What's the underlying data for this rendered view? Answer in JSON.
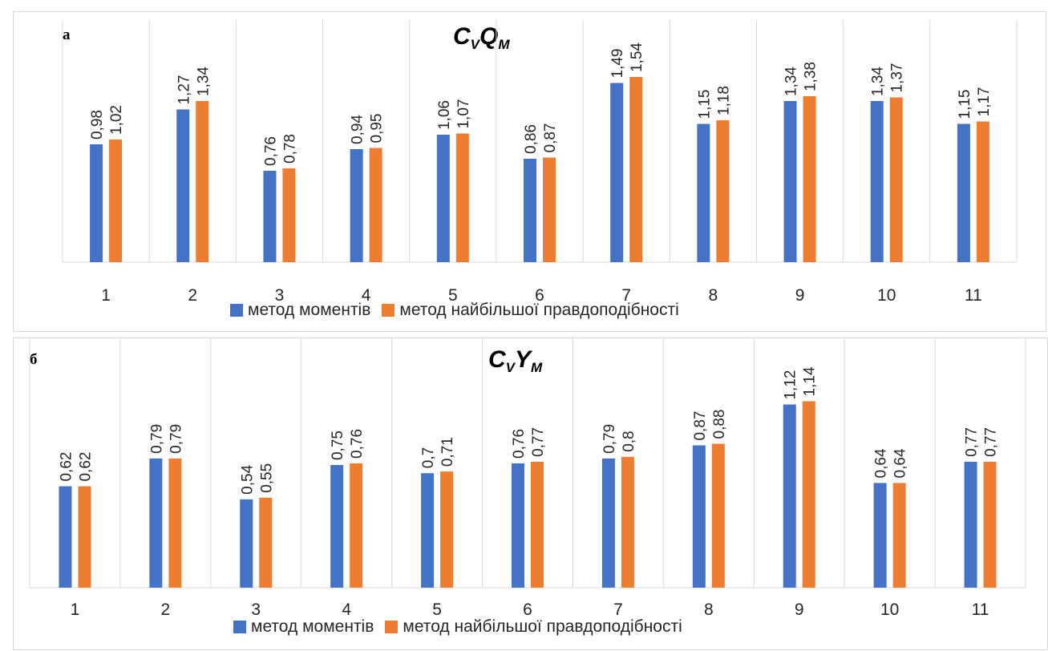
{
  "colors": {
    "moments": "#4472c4",
    "ml": "#ed7d31",
    "grid": "#d9d9d9",
    "text": "#262626"
  },
  "chart_data": [
    {
      "type": "bar",
      "panel_letter": "а",
      "title_base": "C",
      "title_sub1": "V",
      "title_mid": "Q",
      "title_sub2": "M",
      "categories": [
        "1",
        "2",
        "3",
        "4",
        "5",
        "6",
        "7",
        "8",
        "9",
        "10",
        "11"
      ],
      "series": [
        {
          "name": "метод моментів",
          "values": [
            0.98,
            1.27,
            0.76,
            0.94,
            1.06,
            0.86,
            1.49,
            1.15,
            1.34,
            1.34,
            1.15
          ],
          "labels": [
            "0,98",
            "1,27",
            "0,76",
            "0,94",
            "1,06",
            "0,86",
            "1,49",
            "1,15",
            "1,34",
            "1,34",
            "1,15"
          ]
        },
        {
          "name": "метод найбільшої правдоподібності",
          "values": [
            1.02,
            1.34,
            0.78,
            0.95,
            1.07,
            0.87,
            1.54,
            1.18,
            1.38,
            1.37,
            1.17
          ],
          "labels": [
            "1,02",
            "1,34",
            "0,78",
            "0,95",
            "1,07",
            "0,87",
            "1,54",
            "1,18",
            "1,38",
            "1,37",
            "1,17"
          ]
        }
      ],
      "legend": "bottom",
      "grid": "vertical"
    },
    {
      "type": "bar",
      "panel_letter": "б",
      "title_base": "C",
      "title_sub1": "V",
      "title_mid": "Y",
      "title_sub2": "M",
      "categories": [
        "1",
        "2",
        "3",
        "4",
        "5",
        "6",
        "7",
        "8",
        "9",
        "10",
        "11"
      ],
      "series": [
        {
          "name": "метод моментів",
          "values": [
            0.62,
            0.79,
            0.54,
            0.75,
            0.7,
            0.76,
            0.79,
            0.87,
            1.12,
            0.64,
            0.77
          ],
          "labels": [
            "0,62",
            "0,79",
            "0,54",
            "0,75",
            "0,7",
            "0,76",
            "0,79",
            "0,87",
            "1,12",
            "0,64",
            "0,77"
          ]
        },
        {
          "name": "метод найбільшої правдоподібності",
          "values": [
            0.62,
            0.79,
            0.55,
            0.76,
            0.71,
            0.77,
            0.8,
            0.88,
            1.14,
            0.64,
            0.77
          ],
          "labels": [
            "0,62",
            "0,79",
            "0,55",
            "0,76",
            "0,71",
            "0,77",
            "0,8",
            "0,88",
            "1,14",
            "0,64",
            "0,77"
          ]
        }
      ],
      "legend": "bottom",
      "grid": "vertical"
    }
  ]
}
